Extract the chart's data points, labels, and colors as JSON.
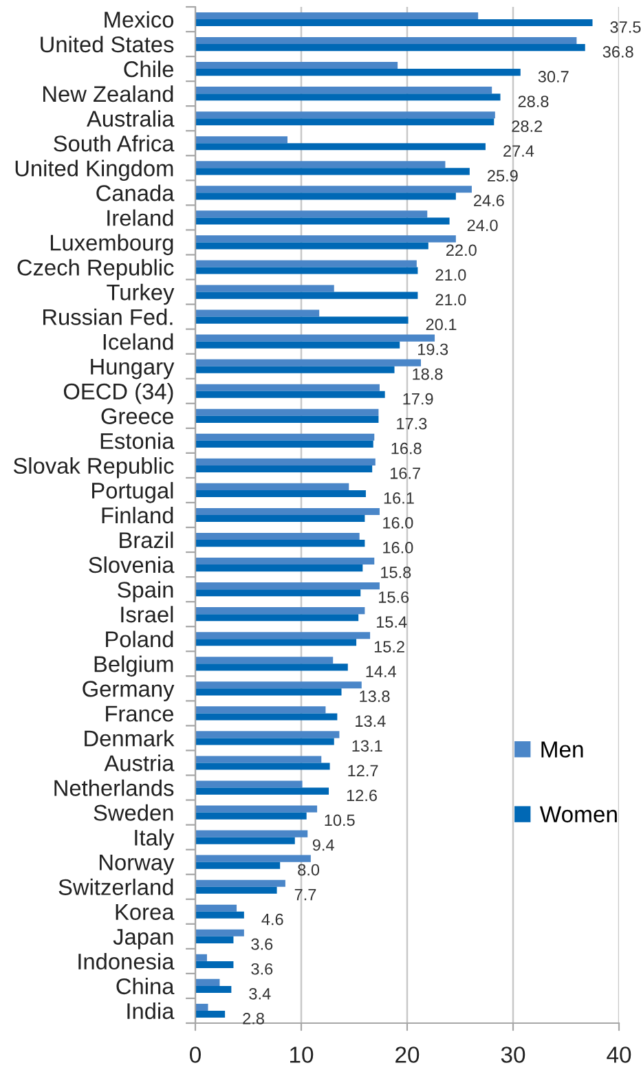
{
  "chart_data": {
    "type": "bar",
    "orientation": "horizontal",
    "categories": [
      "Mexico",
      "United States",
      "Chile",
      "New Zealand",
      "Australia",
      "South Africa",
      "United Kingdom",
      "Canada",
      "Ireland",
      "Luxembourg",
      "Czech Republic",
      "Turkey",
      "Russian Fed.",
      "Iceland",
      "Hungary",
      "OECD (34)",
      "Greece",
      "Estonia",
      "Slovak Republic",
      "Portugal",
      "Finland",
      "Brazil",
      "Slovenia",
      "Spain",
      "Israel",
      "Poland",
      "Belgium",
      "Germany",
      "France",
      "Denmark",
      "Austria",
      "Netherlands",
      "Sweden",
      "Italy",
      "Norway",
      "Switzerland",
      "Korea",
      "Japan",
      "Indonesia",
      "China",
      "India"
    ],
    "series": [
      {
        "name": "Men",
        "color": "#4a86c8",
        "values": [
          26.7,
          36.0,
          19.1,
          28.0,
          28.3,
          8.7,
          23.6,
          26.1,
          21.9,
          24.6,
          20.9,
          13.1,
          11.7,
          22.6,
          21.3,
          17.4,
          17.3,
          16.9,
          17.0,
          14.5,
          17.4,
          15.5,
          16.9,
          17.4,
          16.0,
          16.5,
          13.0,
          15.7,
          12.3,
          13.6,
          11.9,
          10.1,
          11.5,
          10.6,
          10.9,
          8.5,
          3.9,
          4.6,
          1.1,
          2.3,
          1.2
        ]
      },
      {
        "name": "Women",
        "color": "#0068b5",
        "values": [
          37.5,
          36.8,
          30.7,
          28.8,
          28.2,
          27.4,
          25.9,
          24.6,
          24.0,
          22.0,
          21.0,
          21.0,
          20.1,
          19.3,
          18.8,
          17.9,
          17.3,
          16.8,
          16.7,
          16.1,
          16.0,
          16.0,
          15.8,
          15.6,
          15.4,
          15.2,
          14.4,
          13.8,
          13.4,
          13.1,
          12.7,
          12.6,
          10.5,
          9.4,
          8.0,
          7.7,
          4.6,
          3.6,
          3.6,
          3.4,
          2.8
        ],
        "value_labels": [
          "37.5",
          "36.8",
          "30.7",
          "28.8",
          "28.2",
          "27.4",
          "25.9",
          "24.6",
          "24.0",
          "22.0",
          "21.0",
          "21.0",
          "20.1",
          "19.3",
          "18.8",
          "17.9",
          "17.3",
          "16.8",
          "16.7",
          "16.1",
          "16.0",
          "16.0",
          "15.8",
          "15.6",
          "15.4",
          "15.2",
          "14.4",
          "13.8",
          "13.4",
          "13.1",
          "12.7",
          "12.6",
          "10.5",
          "9.4",
          "8.0",
          "7.7",
          "4.6",
          "3.6",
          "3.6",
          "3.4",
          "2.8"
        ]
      }
    ],
    "xlim": [
      0,
      40
    ],
    "xticks": [
      0,
      10,
      20,
      30,
      40
    ],
    "grid": "x",
    "legend": "bottom right"
  }
}
